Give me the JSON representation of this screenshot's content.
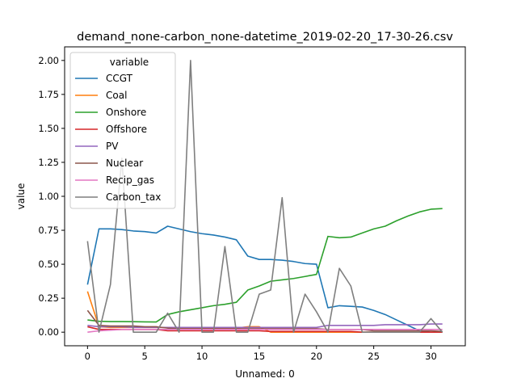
{
  "chart_data": {
    "type": "line",
    "title": "demand_none-carbon_none-datetime_2019-02-20_17-30-26.csv",
    "xlabel": "Unnamed: 0",
    "ylabel": "value",
    "xlim": [
      -2.0,
      33.0
    ],
    "ylim": [
      -0.1,
      2.1
    ],
    "x_ticks": [
      0,
      5,
      10,
      15,
      20,
      25,
      30
    ],
    "x_tick_labels": [
      "0",
      "5",
      "10",
      "15",
      "20",
      "25",
      "30"
    ],
    "y_ticks": [
      0.0,
      0.25,
      0.5,
      0.75,
      1.0,
      1.25,
      1.5,
      1.75,
      2.0
    ],
    "y_tick_labels": [
      "0.00",
      "0.25",
      "0.50",
      "0.75",
      "1.00",
      "1.25",
      "1.50",
      "1.75",
      "2.00"
    ],
    "grid": false,
    "legend": {
      "title": "variable",
      "position": "top-left"
    },
    "x": [
      0,
      1,
      2,
      3,
      4,
      5,
      6,
      7,
      8,
      9,
      10,
      11,
      12,
      13,
      14,
      15,
      16,
      17,
      18,
      19,
      20,
      21,
      22,
      23,
      24,
      25,
      26,
      27,
      28,
      29,
      30,
      31
    ],
    "series": [
      {
        "name": "CCGT",
        "color": "#1f77b4",
        "values": [
          0.35,
          0.76,
          0.76,
          0.755,
          0.745,
          0.74,
          0.73,
          0.78,
          0.76,
          0.74,
          0.725,
          0.715,
          0.7,
          0.68,
          0.56,
          0.535,
          0.535,
          0.53,
          0.52,
          0.505,
          0.5,
          0.18,
          0.195,
          0.19,
          0.185,
          0.16,
          0.13,
          0.09,
          0.05,
          0.01,
          0.0,
          0.0
        ]
      },
      {
        "name": "Coal",
        "color": "#ff7f0e",
        "values": [
          0.3,
          0.04,
          0.035,
          0.035,
          0.035,
          0.035,
          0.035,
          0.035,
          0.03,
          0.03,
          0.03,
          0.03,
          0.03,
          0.03,
          0.04,
          0.04,
          0.0,
          0.0,
          0.0,
          0.0,
          0.0,
          0.0,
          0.0,
          0.0,
          0.0,
          0.0,
          0.0,
          0.0,
          0.0,
          0.0,
          0.0,
          0.0
        ]
      },
      {
        "name": "Onshore",
        "color": "#2ca02c",
        "values": [
          0.09,
          0.08,
          0.078,
          0.078,
          0.077,
          0.076,
          0.075,
          0.13,
          0.15,
          0.165,
          0.18,
          0.195,
          0.205,
          0.22,
          0.31,
          0.34,
          0.375,
          0.385,
          0.395,
          0.41,
          0.425,
          0.705,
          0.695,
          0.7,
          0.73,
          0.76,
          0.78,
          0.82,
          0.855,
          0.885,
          0.905,
          0.91
        ]
      },
      {
        "name": "Offshore",
        "color": "#d62728",
        "values": [
          0.04,
          0.02,
          0.02,
          0.02,
          0.02,
          0.02,
          0.02,
          0.01,
          0.01,
          0.01,
          0.01,
          0.01,
          0.01,
          0.01,
          0.01,
          0.01,
          0.005,
          0.005,
          0.005,
          0.005,
          0.005,
          0.005,
          0.005,
          0.005,
          0.0,
          0.0,
          0.0,
          0.0,
          0.0,
          0.0,
          0.0,
          0.0
        ]
      },
      {
        "name": "PV",
        "color": "#9467bd",
        "values": [
          0.05,
          0.04,
          0.04,
          0.04,
          0.035,
          0.035,
          0.035,
          0.035,
          0.035,
          0.035,
          0.035,
          0.035,
          0.035,
          0.035,
          0.035,
          0.035,
          0.035,
          0.035,
          0.035,
          0.035,
          0.035,
          0.05,
          0.05,
          0.05,
          0.05,
          0.05,
          0.055,
          0.055,
          0.055,
          0.055,
          0.06,
          0.06
        ]
      },
      {
        "name": "Nuclear",
        "color": "#8c564b",
        "values": [
          0.16,
          0.05,
          0.045,
          0.045,
          0.045,
          0.04,
          0.04,
          0.03,
          0.025,
          0.025,
          0.025,
          0.025,
          0.025,
          0.025,
          0.025,
          0.025,
          0.025,
          0.025,
          0.025,
          0.025,
          0.025,
          0.02,
          0.02,
          0.02,
          0.02,
          0.01,
          0.01,
          0.01,
          0.01,
          0.01,
          0.01,
          0.005
        ]
      },
      {
        "name": "Recip_gas",
        "color": "#e377c2",
        "values": [
          0.0,
          0.01,
          0.015,
          0.02,
          0.02,
          0.02,
          0.02,
          0.02,
          0.02,
          0.02,
          0.02,
          0.02,
          0.02,
          0.02,
          0.02,
          0.02,
          0.02,
          0.02,
          0.02,
          0.02,
          0.02,
          0.02,
          0.02,
          0.02,
          0.02,
          0.02,
          0.02,
          0.02,
          0.02,
          0.02,
          0.02,
          0.02
        ]
      },
      {
        "name": "Carbon_tax",
        "color": "#7f7f7f",
        "values": [
          0.67,
          0.0,
          0.35,
          1.28,
          0.0,
          0.0,
          0.0,
          0.14,
          0.0,
          2.0,
          0.0,
          0.0,
          0.63,
          0.0,
          0.0,
          0.28,
          0.31,
          0.99,
          0.0,
          0.28,
          0.15,
          0.0,
          0.47,
          0.34,
          0.0,
          0.0,
          0.0,
          0.0,
          0.0,
          0.0,
          0.1,
          0.0
        ]
      }
    ]
  }
}
